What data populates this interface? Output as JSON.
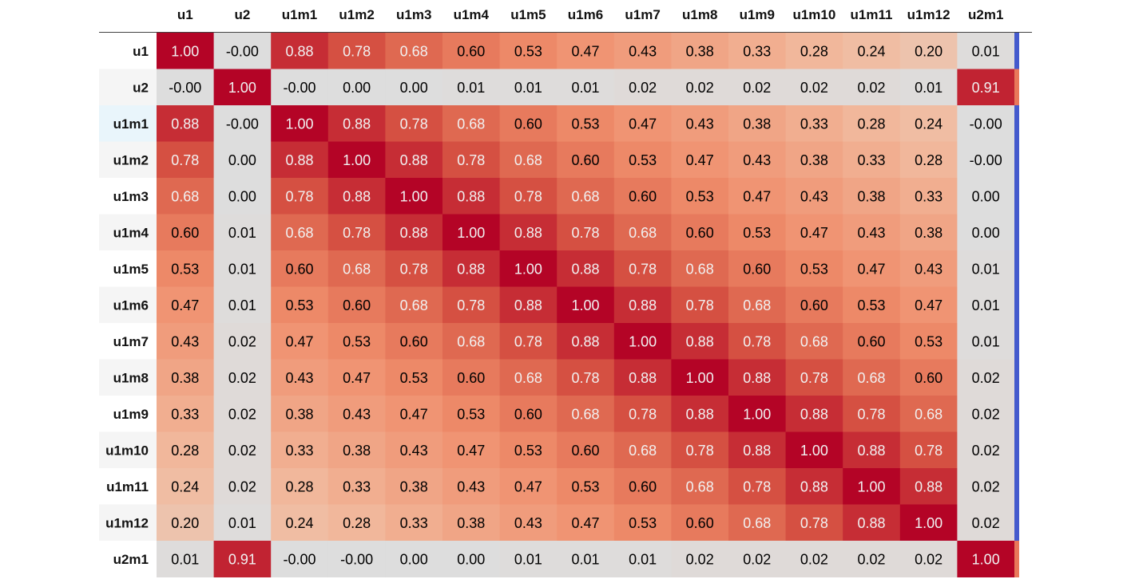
{
  "chart_data": {
    "type": "heatmap",
    "colormap": "coolwarm",
    "vmin": -1,
    "vmax": 1,
    "columns": [
      "u1",
      "u2",
      "u1m1",
      "u1m2",
      "u1m3",
      "u1m4",
      "u1m5",
      "u1m6",
      "u1m7",
      "u1m8",
      "u1m9",
      "u1m10",
      "u1m11",
      "u1m12",
      "u2m1"
    ],
    "rows": [
      "u1",
      "u2",
      "u1m1",
      "u1m2",
      "u1m3",
      "u1m4",
      "u1m5",
      "u1m6",
      "u1m7",
      "u1m8",
      "u1m9",
      "u1m10",
      "u1m11",
      "u1m12",
      "u2m1"
    ],
    "values": [
      [
        "1.00",
        "-0.00",
        "0.88",
        "0.78",
        "0.68",
        "0.60",
        "0.53",
        "0.47",
        "0.43",
        "0.38",
        "0.33",
        "0.28",
        "0.24",
        "0.20",
        "0.01"
      ],
      [
        "-0.00",
        "1.00",
        "-0.00",
        "0.00",
        "0.00",
        "0.01",
        "0.01",
        "0.01",
        "0.02",
        "0.02",
        "0.02",
        "0.02",
        "0.02",
        "0.01",
        "0.91"
      ],
      [
        "0.88",
        "-0.00",
        "1.00",
        "0.88",
        "0.78",
        "0.68",
        "0.60",
        "0.53",
        "0.47",
        "0.43",
        "0.38",
        "0.33",
        "0.28",
        "0.24",
        "-0.00"
      ],
      [
        "0.78",
        "0.00",
        "0.88",
        "1.00",
        "0.88",
        "0.78",
        "0.68",
        "0.60",
        "0.53",
        "0.47",
        "0.43",
        "0.38",
        "0.33",
        "0.28",
        "-0.00"
      ],
      [
        "0.68",
        "0.00",
        "0.78",
        "0.88",
        "1.00",
        "0.88",
        "0.78",
        "0.68",
        "0.60",
        "0.53",
        "0.47",
        "0.43",
        "0.38",
        "0.33",
        "0.00"
      ],
      [
        "0.60",
        "0.01",
        "0.68",
        "0.78",
        "0.88",
        "1.00",
        "0.88",
        "0.78",
        "0.68",
        "0.60",
        "0.53",
        "0.47",
        "0.43",
        "0.38",
        "0.00"
      ],
      [
        "0.53",
        "0.01",
        "0.60",
        "0.68",
        "0.78",
        "0.88",
        "1.00",
        "0.88",
        "0.78",
        "0.68",
        "0.60",
        "0.53",
        "0.47",
        "0.43",
        "0.01"
      ],
      [
        "0.47",
        "0.01",
        "0.53",
        "0.60",
        "0.68",
        "0.78",
        "0.88",
        "1.00",
        "0.88",
        "0.78",
        "0.68",
        "0.60",
        "0.53",
        "0.47",
        "0.01"
      ],
      [
        "0.43",
        "0.02",
        "0.47",
        "0.53",
        "0.60",
        "0.68",
        "0.78",
        "0.88",
        "1.00",
        "0.88",
        "0.78",
        "0.68",
        "0.60",
        "0.53",
        "0.01"
      ],
      [
        "0.38",
        "0.02",
        "0.43",
        "0.47",
        "0.53",
        "0.60",
        "0.68",
        "0.78",
        "0.88",
        "1.00",
        "0.88",
        "0.78",
        "0.68",
        "0.60",
        "0.02"
      ],
      [
        "0.33",
        "0.02",
        "0.38",
        "0.43",
        "0.47",
        "0.53",
        "0.60",
        "0.68",
        "0.78",
        "0.88",
        "1.00",
        "0.88",
        "0.78",
        "0.68",
        "0.02"
      ],
      [
        "0.28",
        "0.02",
        "0.33",
        "0.38",
        "0.43",
        "0.47",
        "0.53",
        "0.60",
        "0.68",
        "0.78",
        "0.88",
        "1.00",
        "0.88",
        "0.78",
        "0.02"
      ],
      [
        "0.24",
        "0.02",
        "0.28",
        "0.33",
        "0.38",
        "0.43",
        "0.47",
        "0.53",
        "0.60",
        "0.68",
        "0.78",
        "0.88",
        "1.00",
        "0.88",
        "0.02"
      ],
      [
        "0.20",
        "0.01",
        "0.24",
        "0.28",
        "0.33",
        "0.38",
        "0.43",
        "0.47",
        "0.53",
        "0.60",
        "0.68",
        "0.78",
        "0.88",
        "1.00",
        "0.02"
      ],
      [
        "0.01",
        "0.91",
        "-0.00",
        "-0.00",
        "0.00",
        "0.00",
        "0.01",
        "0.01",
        "0.01",
        "0.02",
        "0.02",
        "0.02",
        "0.02",
        "0.02",
        "1.00"
      ]
    ]
  }
}
